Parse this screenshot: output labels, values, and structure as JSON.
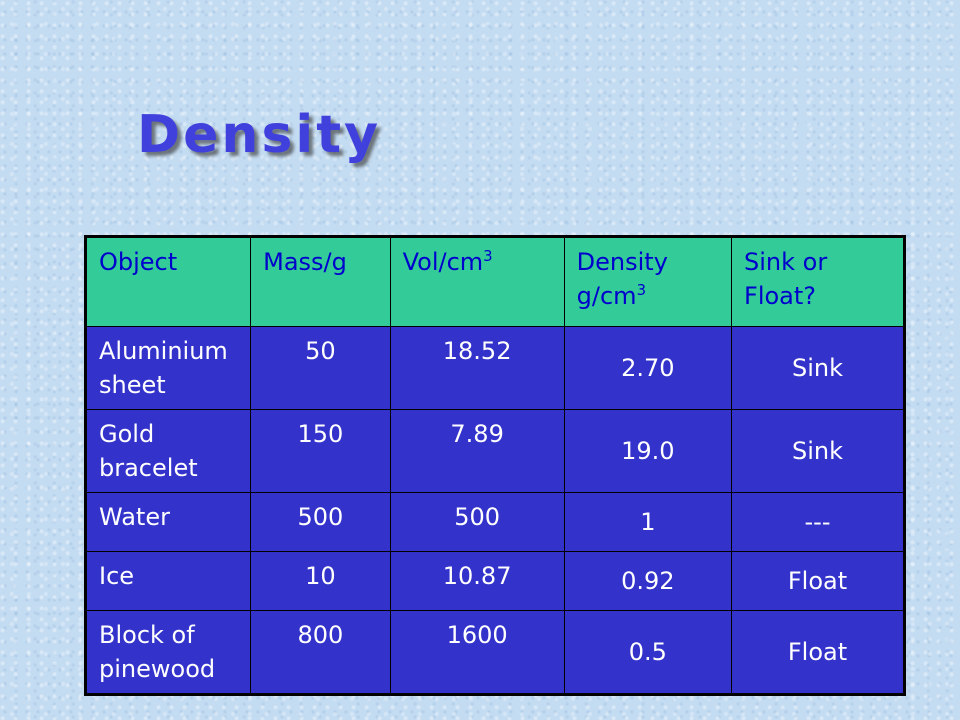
{
  "title": "Density",
  "table": {
    "headers": {
      "object": "Object",
      "mass": "Mass/g",
      "vol": "Vol/cm",
      "vol_sup": "3",
      "density": "Density g/cm",
      "density_sup": "3",
      "result": "Sink or Float?"
    },
    "rows": [
      {
        "object": "Aluminium sheet",
        "mass": "50",
        "vol": "18.52",
        "density": "2.70",
        "result": "Sink"
      },
      {
        "object": "Gold bracelet",
        "mass": "150",
        "vol": "7.89",
        "density": "19.0",
        "result": "Sink"
      },
      {
        "object": "Water",
        "mass": "500",
        "vol": "500",
        "density": "1",
        "result": "---"
      },
      {
        "object": "Ice",
        "mass": "10",
        "vol": "10.87",
        "density": "0.92",
        "result": "Float"
      },
      {
        "object": "Block of pinewood",
        "mass": "800",
        "vol": "1600",
        "density": "0.5",
        "result": "Float"
      }
    ]
  },
  "colors": {
    "title": "#4040dd",
    "header_bg": "#33cc99",
    "header_text": "#0000cc",
    "body_bg": "#3333cc",
    "body_text": "#ffffff",
    "background": "#c4dcf2"
  }
}
